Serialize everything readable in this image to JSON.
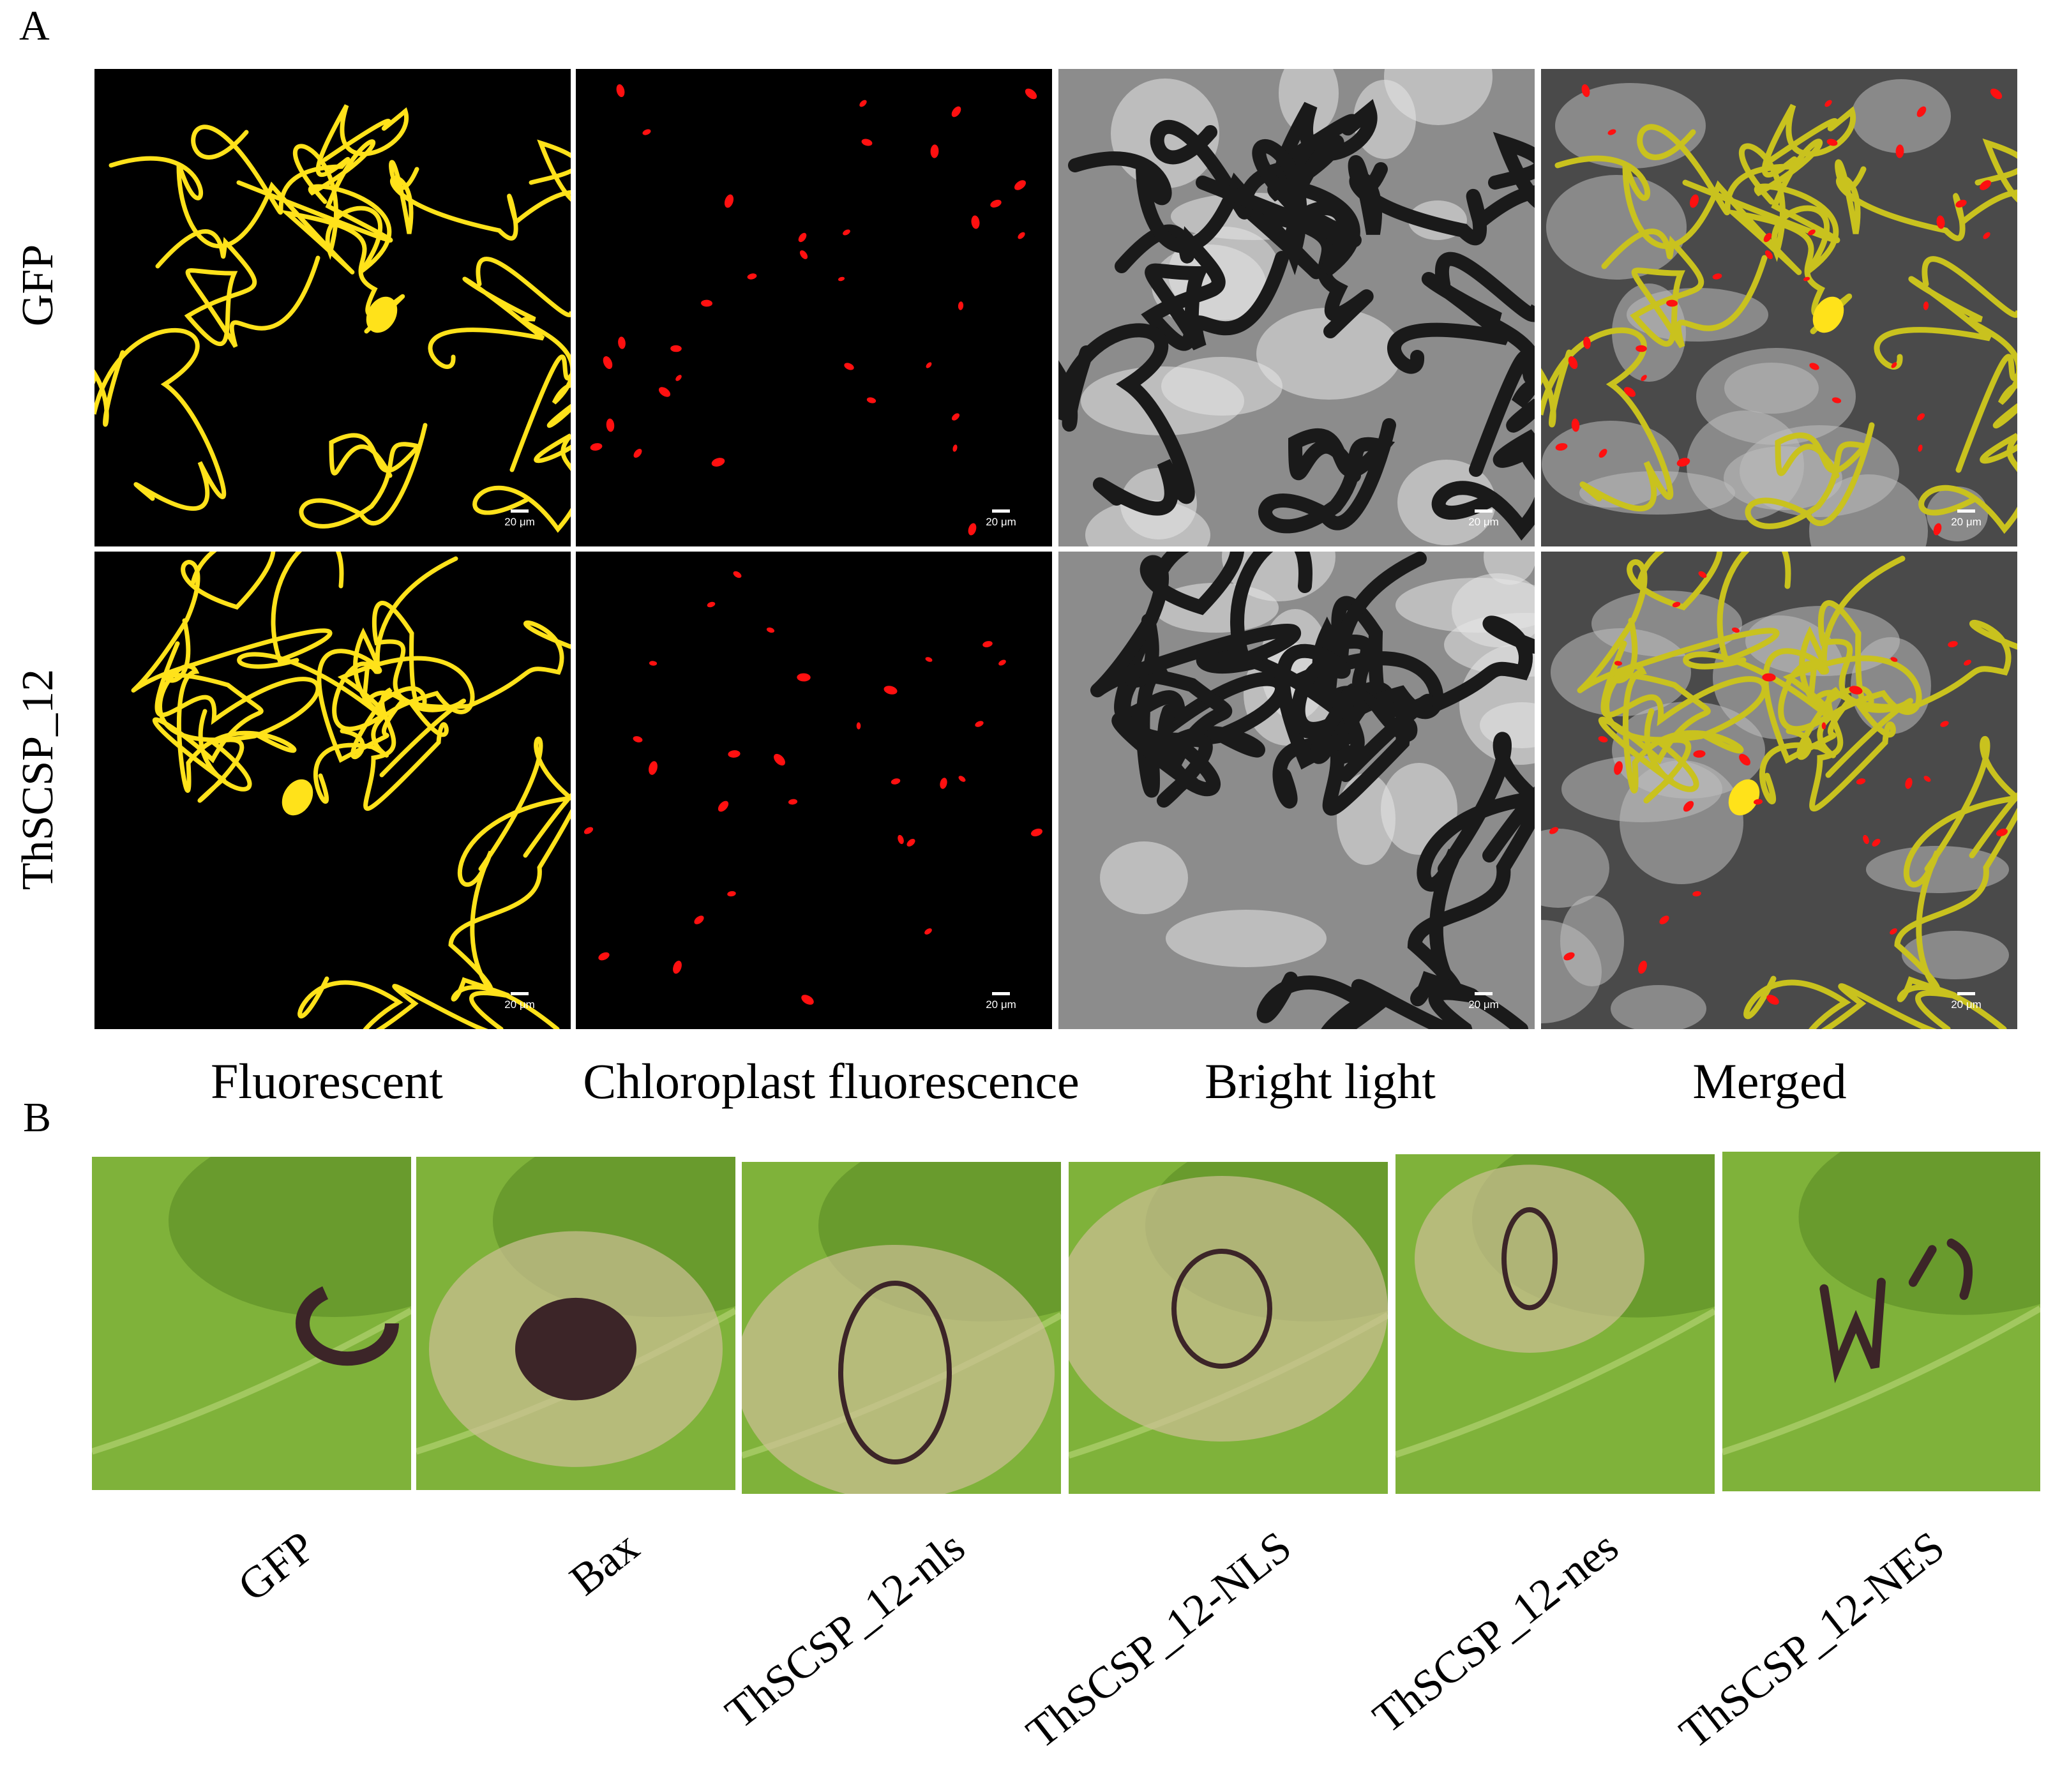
{
  "panel_a": {
    "letter": "A",
    "rows": [
      "GFP",
      "ThSCSP_12"
    ],
    "columns": [
      "Fluorescent",
      "Chloroplast fluorescence",
      "Bright light",
      "Merged"
    ],
    "scale_bar_label": "20 μm",
    "colors": {
      "fluorescence": "#ffe21a",
      "chloroplast": "#ff1010",
      "background": "#000000"
    }
  },
  "panel_b": {
    "letter": "B",
    "samples": [
      "GFP",
      "Bax",
      "ThSCSP_12-nls",
      "ThSCSP_12-NLS",
      "ThSCSP_12-nes",
      "ThSCSP_12-NES"
    ],
    "colors": {
      "leaf": "#7fb23a",
      "lesion": "#3c2528"
    }
  }
}
